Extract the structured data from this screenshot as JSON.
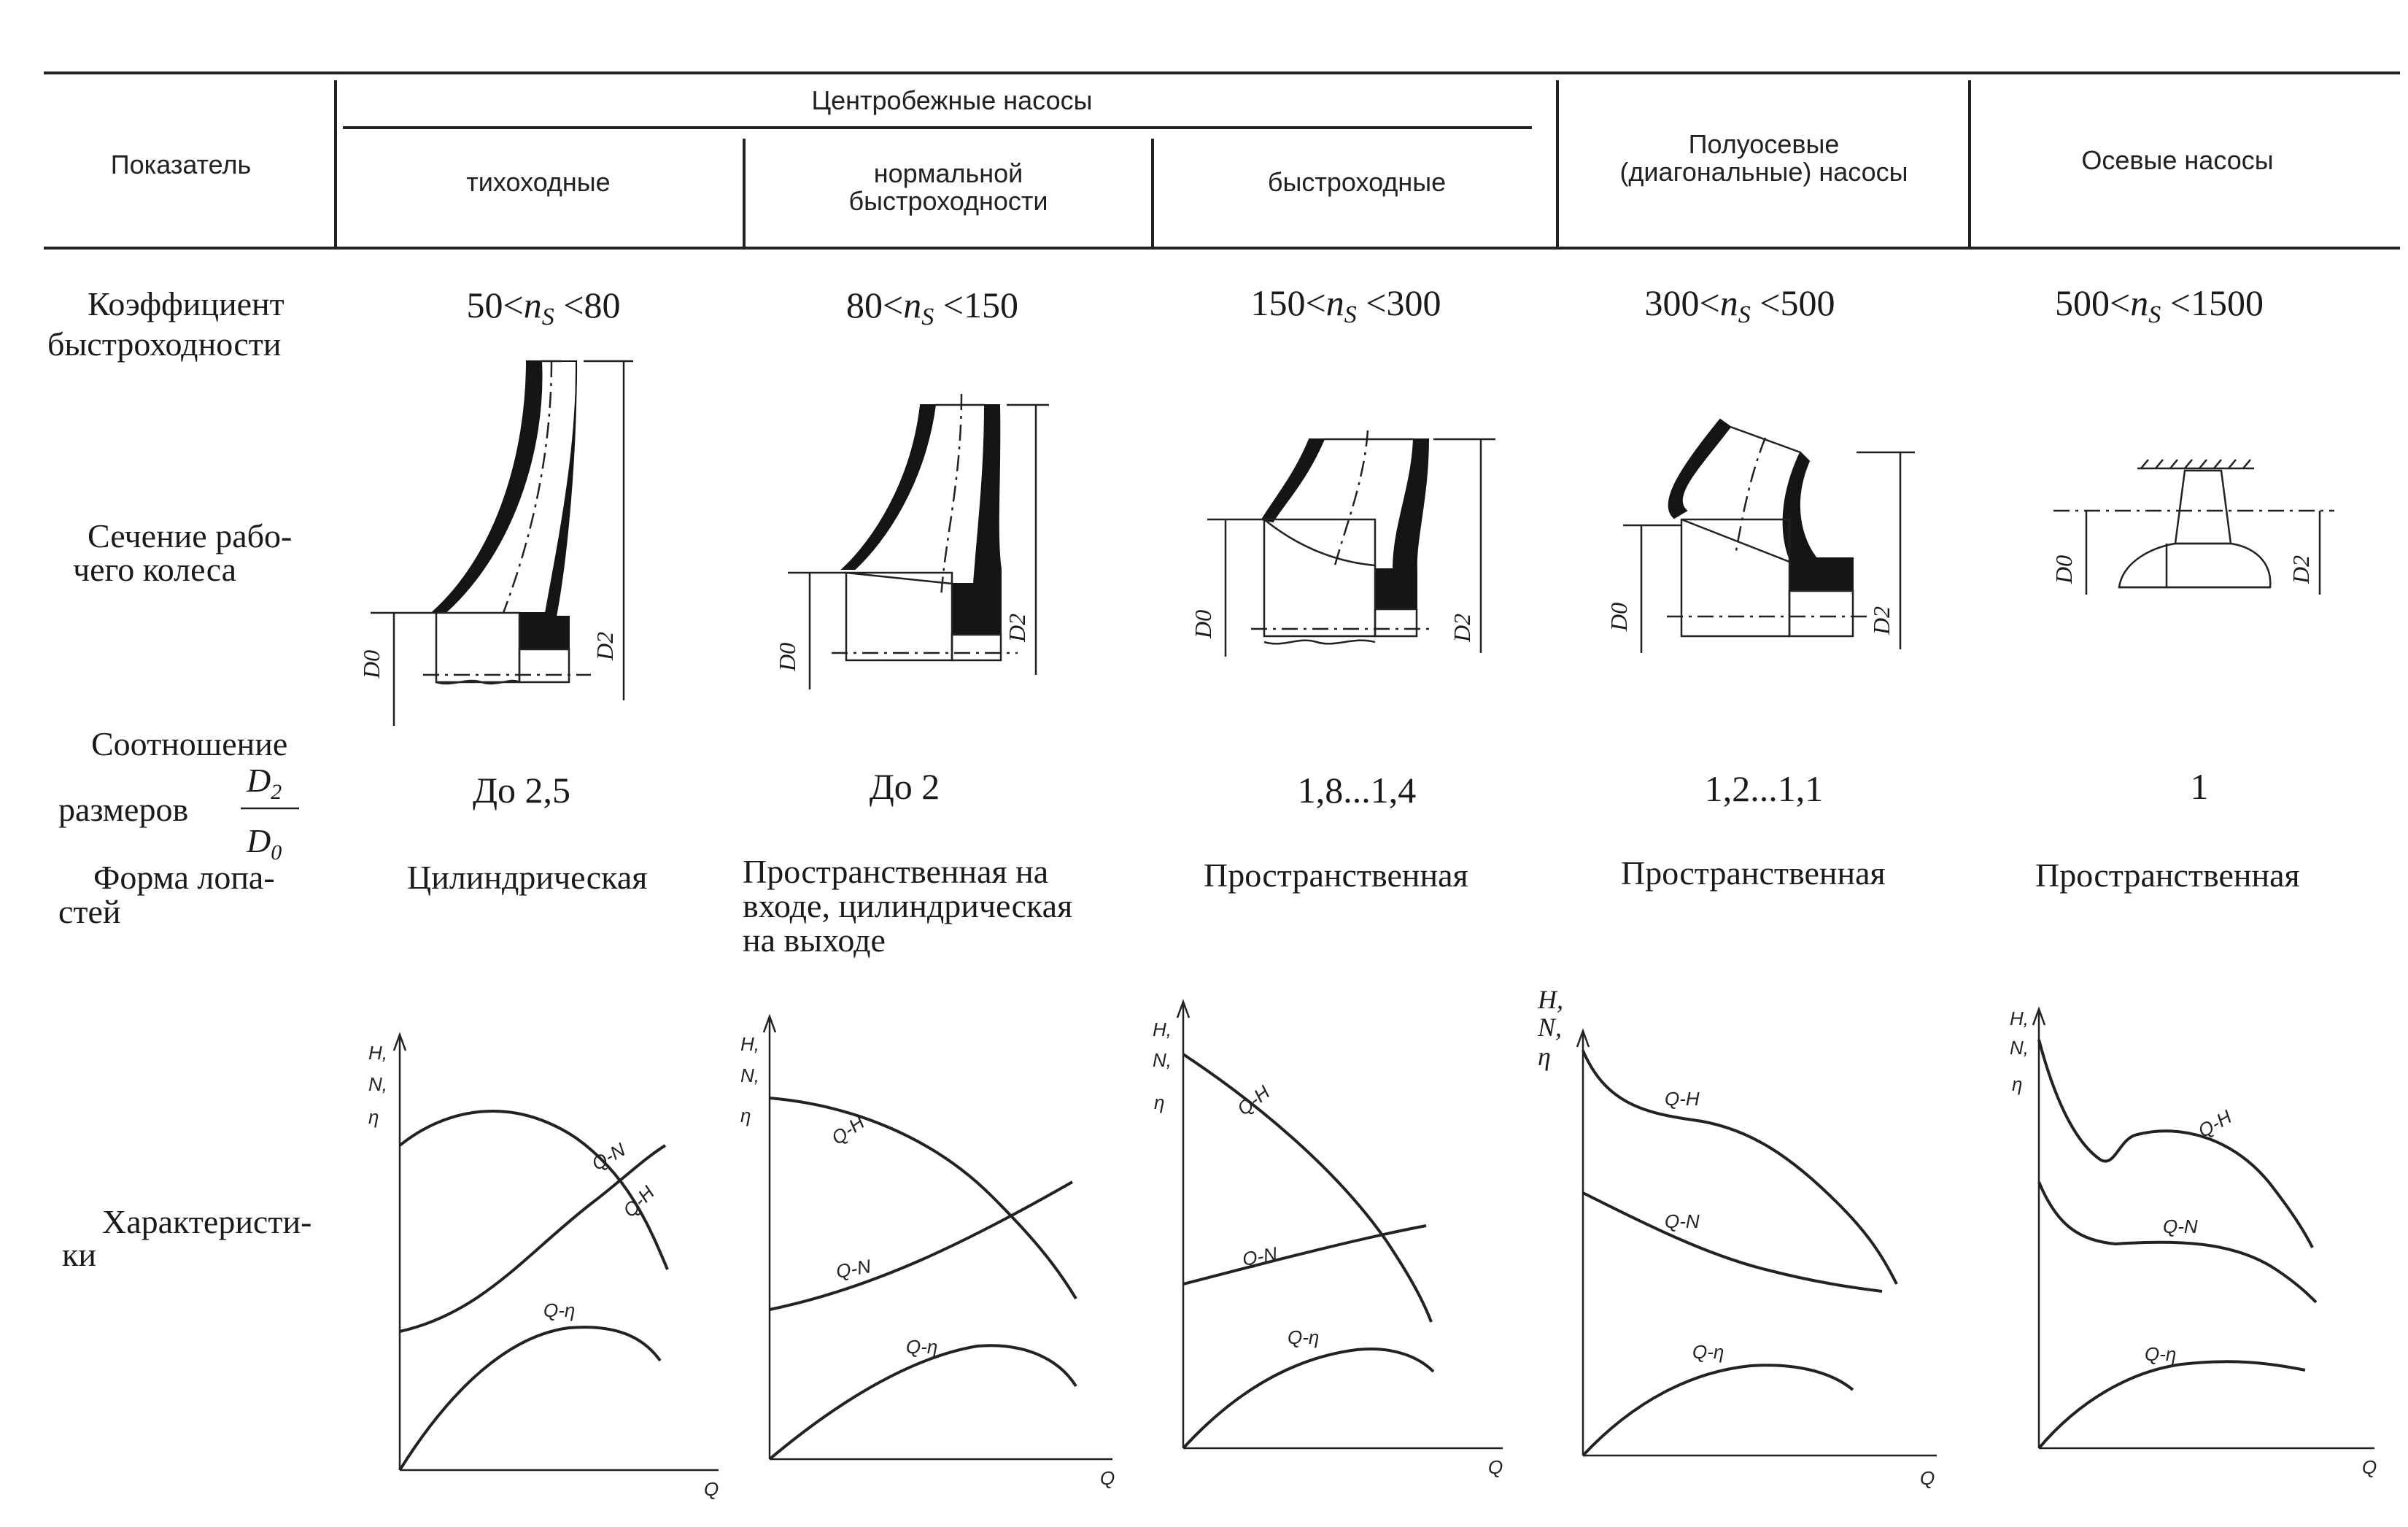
{
  "header": {
    "indicator": "Показатель",
    "centrifugal": "Центробежные насосы",
    "low_speed": "тихоходные",
    "normal_speed_line1": "нормальной",
    "normal_speed_line2": "быстроходности",
    "high_speed": "быстроходные",
    "mixed_flow_line1": "Полуосевые",
    "mixed_flow_line2": "(диагональные) насосы",
    "axial": "Осевые насосы"
  },
  "rows": {
    "speed_coef_line1": "Коэффициент",
    "speed_coef_line2": "быстроходности",
    "section_line1": "Сечение рабо-",
    "section_line2": "чего колеса",
    "ratio_line1": "Соотношение",
    "ratio_line2": "размеров",
    "blade_line1": "Форма лопа-",
    "blade_line2": "стей",
    "char_line1": "Характеристи-",
    "char_line2": "ки"
  },
  "ratio_fraction": {
    "num": "D",
    "num_sub": "2",
    "den": "D",
    "den_sub": "0"
  },
  "ns_symbol": {
    "n": "n",
    "sub": "S"
  },
  "columns": [
    {
      "ns_low": "50",
      "ns_high": "80",
      "ratio": "До 2,5",
      "blade": [
        "Цилиндрическая"
      ]
    },
    {
      "ns_low": "80",
      "ns_high": "150",
      "ratio": "До 2",
      "blade": [
        "Пространственная на",
        "входе, цилиндрическая",
        "на выходе"
      ]
    },
    {
      "ns_low": "150",
      "ns_high": "300",
      "ratio": "1,8...1,4",
      "blade": [
        "Пространственная"
      ]
    },
    {
      "ns_low": "300",
      "ns_high": "500",
      "ratio": "1,2...1,1",
      "blade": [
        "Пространственная"
      ]
    },
    {
      "ns_low": "500",
      "ns_high": "1500",
      "ratio": "1",
      "blade": [
        "Пространственная"
      ]
    }
  ],
  "dim_labels": {
    "d0": "D0",
    "d2": "D2"
  },
  "chart_labels": {
    "y_h": "H,",
    "y_n": "N,",
    "y_eta": "η",
    "x_q": "Q",
    "qh": "Q-H",
    "qn": "Q-N",
    "qeta": "Q-η"
  }
}
